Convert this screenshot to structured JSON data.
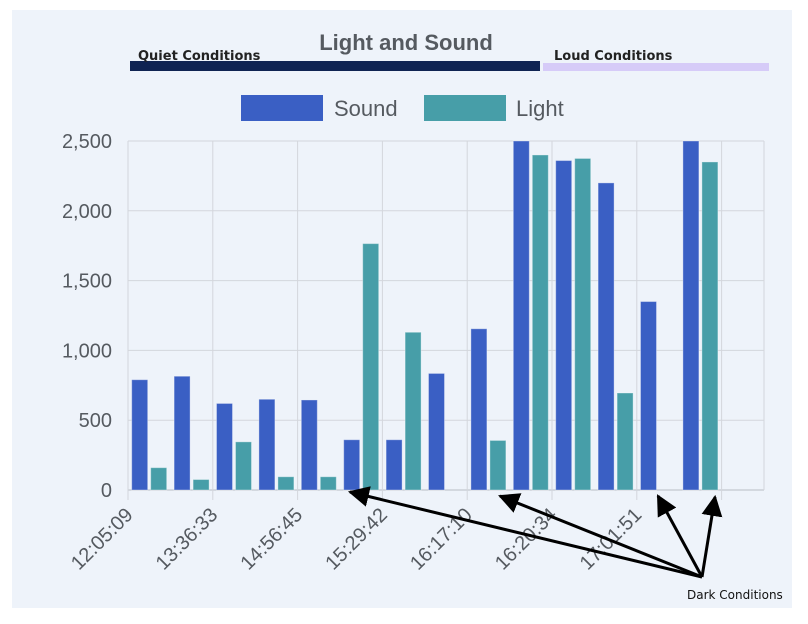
{
  "chart_data": {
    "type": "bar",
    "title": "Light and Sound",
    "xlabel": "",
    "ylabel": "",
    "ylim": [
      0,
      2500
    ],
    "yticks": [
      0,
      500,
      1000,
      1500,
      2000,
      2500
    ],
    "ytick_labels": [
      "0",
      "500",
      "1,000",
      "1,500",
      "2,000",
      "2,500"
    ],
    "grid": true,
    "legend": "top-center",
    "categories": [
      "12:05:09",
      "",
      "13:36:33",
      "",
      "14:56:45",
      "",
      "15:29:42",
      "",
      "16:17:10",
      "",
      "16:20:34",
      "",
      "17:01:51",
      "",
      ""
    ],
    "series": [
      {
        "name": "Sound",
        "color": "#3a5fc4",
        "values": [
          790,
          815,
          620,
          650,
          645,
          360,
          360,
          835,
          1155,
          2500,
          2360,
          2200,
          1350,
          2500,
          null
        ]
      },
      {
        "name": "Light",
        "color": "#479ea8",
        "values": [
          160,
          75,
          345,
          95,
          95,
          1765,
          1130,
          null,
          355,
          2400,
          2375,
          695,
          null,
          2350,
          null
        ]
      }
    ],
    "bands": [
      {
        "label": "Quiet Conditions",
        "color": "#0f2352"
      },
      {
        "label": "Loud Conditions",
        "color": "#d6cbf8"
      }
    ],
    "annotation": {
      "label": "Dark Conditions"
    }
  }
}
